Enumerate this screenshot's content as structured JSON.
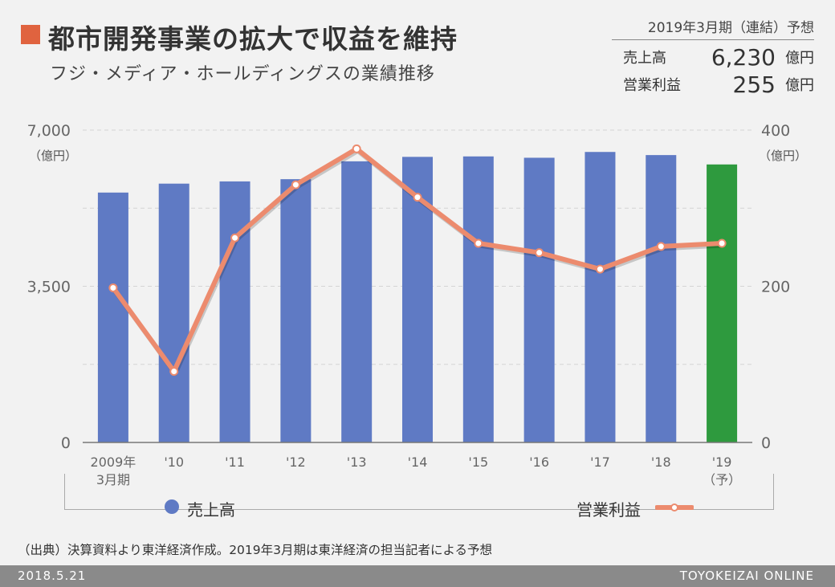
{
  "header": {
    "title": "都市開発事業の拡大で収益を維持",
    "subtitle": "フジ・メディア・ホールディングスの業績推移"
  },
  "forecast": {
    "period": "2019年3月期（連結）予想",
    "sales_label": "売上高",
    "sales_value": "6,230",
    "profit_label": "営業利益",
    "profit_value": "255",
    "unit": "億円"
  },
  "legend": {
    "bar_label": "売上高",
    "line_label": "営業利益"
  },
  "source": "（出典）決算資料より東洋経済作成。2019年3月期は東洋経済の担当記者による予想",
  "footer": {
    "date": "2018.5.21",
    "brand": "TOYOKEIZAI ONLINE"
  },
  "colors": {
    "bar": "#5f7ac4",
    "bar_forecast": "#2e9a3e",
    "line": "#ec8b6e",
    "accent": "#e0633f"
  },
  "chart_data": {
    "type": "bar",
    "categories": [
      "2009年\n3月期",
      "'10",
      "'11",
      "'12",
      "'13",
      "'14",
      "'15",
      "'16",
      "'17",
      "'18",
      "'19\n（予）"
    ],
    "series": [
      {
        "name": "売上高",
        "axis": "left",
        "type": "bar",
        "values": [
          5600,
          5800,
          5850,
          5900,
          6300,
          6400,
          6410,
          6380,
          6510,
          6440,
          6230
        ]
      },
      {
        "name": "営業利益",
        "axis": "right",
        "type": "line",
        "values": [
          198,
          91,
          262,
          330,
          376,
          314,
          255,
          243,
          222,
          251,
          255
        ]
      }
    ],
    "forecast_index": 10,
    "y_left": {
      "range": [
        0,
        7000
      ],
      "ticks": [
        "0",
        "3,500",
        "7,000"
      ],
      "unit": "（億円）"
    },
    "y_right": {
      "range": [
        0,
        400
      ],
      "ticks": [
        "0",
        "200",
        "400"
      ],
      "unit": "（億円）"
    },
    "grid": true
  }
}
